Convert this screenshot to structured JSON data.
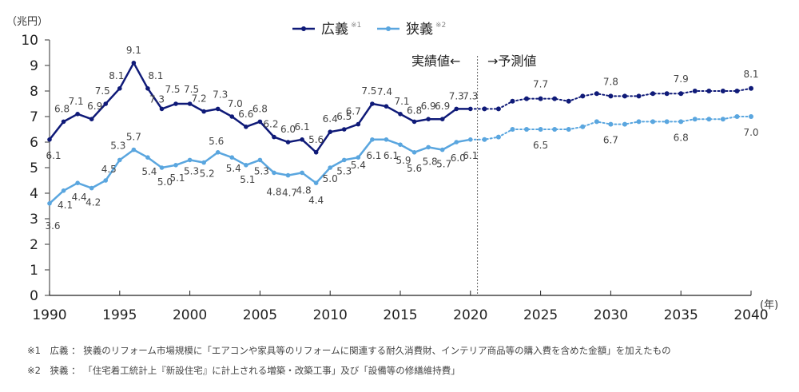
{
  "chart_data": {
    "type": "line",
    "title": "",
    "ylabel": "（兆円）",
    "xlabel": "(年)",
    "ylim": [
      0,
      10
    ],
    "xlim": [
      1990,
      2040
    ],
    "yticks": [
      0,
      1,
      2,
      3,
      4,
      5,
      6,
      7,
      8,
      9,
      10
    ],
    "xticks": [
      1990,
      1995,
      2000,
      2005,
      2010,
      2015,
      2020,
      2025,
      2030,
      2035,
      2040
    ],
    "grid": false,
    "legend_position": "top-center",
    "actual_forecast_split": 2020.5,
    "annotation_actual": "実績値←",
    "annotation_forecast": "→予測値",
    "series": [
      {
        "name": "広義",
        "note_mark": "※1",
        "color": "#0f1a78",
        "actual": {
          "x": [
            1990,
            1991,
            1992,
            1993,
            1994,
            1995,
            1996,
            1997,
            1998,
            1999,
            2000,
            2001,
            2002,
            2003,
            2004,
            2005,
            2006,
            2007,
            2008,
            2009,
            2010,
            2011,
            2012,
            2013,
            2014,
            2015,
            2016,
            2017,
            2018,
            2019,
            2020
          ],
          "values": [
            6.1,
            6.8,
            7.1,
            6.9,
            7.5,
            8.1,
            9.1,
            8.1,
            7.3,
            7.5,
            7.5,
            7.2,
            7.3,
            7.0,
            6.6,
            6.8,
            6.2,
            6.0,
            6.1,
            5.6,
            6.4,
            6.5,
            6.7,
            7.5,
            7.4,
            7.1,
            6.8,
            6.9,
            6.9,
            7.3,
            7.3
          ]
        },
        "forecast": {
          "x": [
            2021,
            2022,
            2023,
            2024,
            2025,
            2026,
            2027,
            2028,
            2029,
            2030,
            2031,
            2032,
            2033,
            2034,
            2035,
            2036,
            2037,
            2038,
            2039,
            2040
          ],
          "values": [
            7.3,
            7.3,
            7.6,
            7.7,
            7.7,
            7.7,
            7.6,
            7.8,
            7.9,
            7.8,
            7.8,
            7.8,
            7.9,
            7.9,
            7.9,
            8.0,
            8.0,
            8.0,
            8.0,
            8.1
          ],
          "labeled_years": [
            2025,
            2030,
            2035,
            2040
          ],
          "labels": [
            "7.7",
            "7.8",
            "7.9",
            "8.1"
          ]
        }
      },
      {
        "name": "狭義",
        "note_mark": "※2",
        "color": "#5aa6df",
        "actual": {
          "x": [
            1990,
            1991,
            1992,
            1993,
            1994,
            1995,
            1996,
            1997,
            1998,
            1999,
            2000,
            2001,
            2002,
            2003,
            2004,
            2005,
            2006,
            2007,
            2008,
            2009,
            2010,
            2011,
            2012,
            2013,
            2014,
            2015,
            2016,
            2017,
            2018,
            2019,
            2020
          ],
          "values": [
            3.6,
            4.1,
            4.4,
            4.2,
            4.5,
            5.3,
            5.7,
            5.4,
            5.0,
            5.1,
            5.3,
            5.2,
            5.6,
            5.4,
            5.1,
            5.3,
            4.8,
            4.7,
            4.8,
            4.4,
            5.0,
            5.3,
            5.4,
            6.1,
            6.1,
            5.9,
            5.6,
            5.8,
            5.7,
            6.0,
            6.1
          ]
        },
        "forecast": {
          "x": [
            2021,
            2022,
            2023,
            2024,
            2025,
            2026,
            2027,
            2028,
            2029,
            2030,
            2031,
            2032,
            2033,
            2034,
            2035,
            2036,
            2037,
            2038,
            2039,
            2040
          ],
          "values": [
            6.1,
            6.2,
            6.5,
            6.5,
            6.5,
            6.5,
            6.5,
            6.6,
            6.8,
            6.7,
            6.7,
            6.8,
            6.8,
            6.8,
            6.8,
            6.9,
            6.9,
            6.9,
            7.0,
            7.0
          ],
          "labeled_years": [
            2025,
            2030,
            2035,
            2040
          ],
          "labels": [
            "6.5",
            "6.7",
            "6.8",
            "7.0"
          ]
        }
      }
    ]
  },
  "notes": [
    "※1　広義 ： 狭義のリフォーム市場規模に「エアコンや家具等のリフォームに関連する耐久消費財、インテリア商品等の購入費を含めた金額」を加えたもの",
    "※2　狭義 ： 「住宅着工統計上『新設住宅』に計上される増築・改築工事」及び「設備等の修繕維持費」"
  ]
}
